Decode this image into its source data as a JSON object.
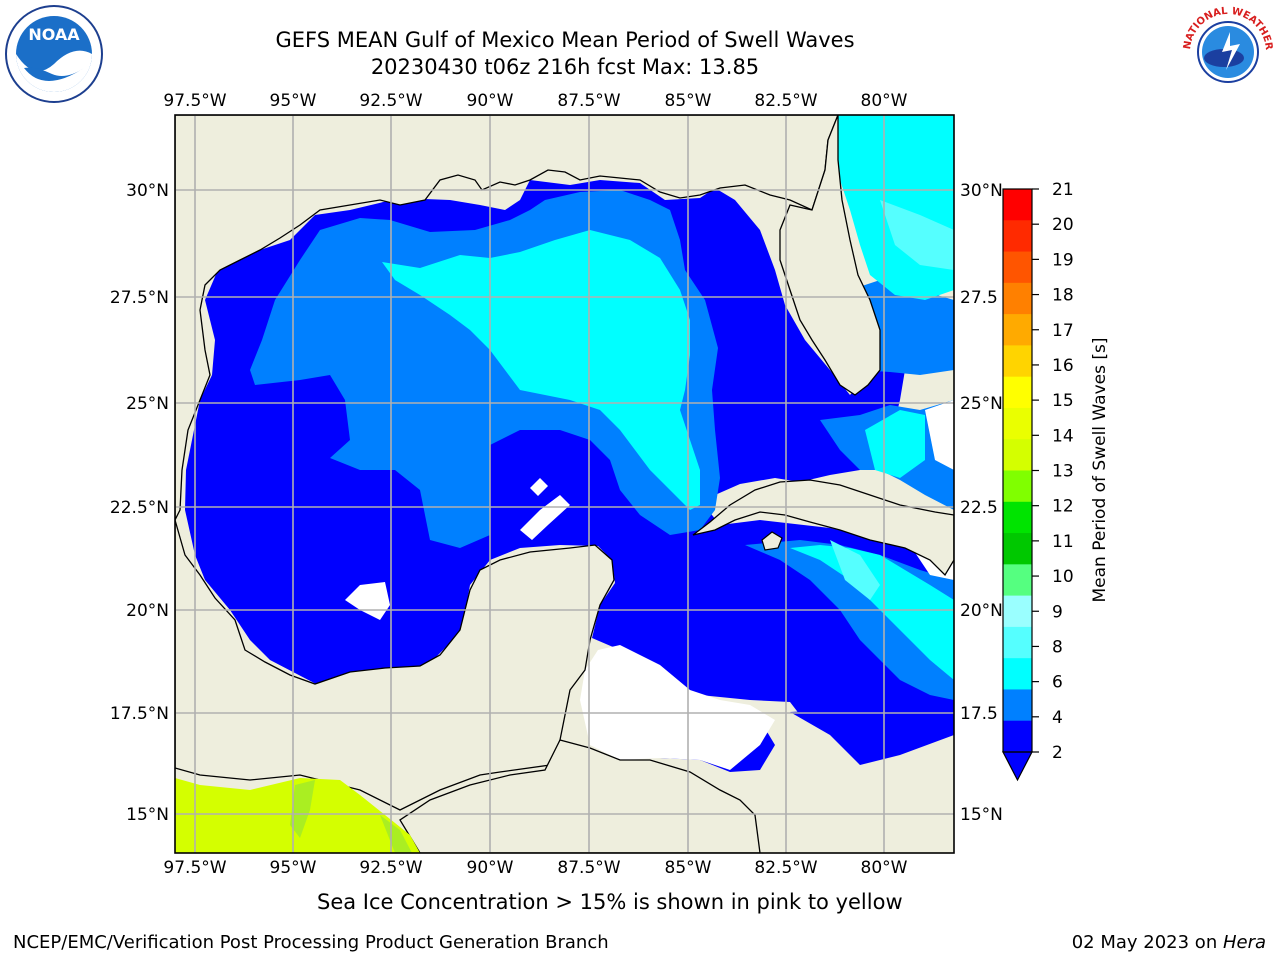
{
  "title": {
    "line1": "GEFS MEAN Gulf of Mexico Mean Period of Swell Waves",
    "line2": "20230430 t06z 216h fcst   Max: 13.85"
  },
  "logos": {
    "left": "NOAA",
    "right": "NATIONAL WEATHER SERVICE"
  },
  "axes": {
    "lon_labels": [
      "97.5°W",
      "95°W",
      "92.5°W",
      "90°W",
      "87.5°W",
      "85°W",
      "82.5°W",
      "80°W"
    ],
    "lat_labels_left": [
      "30°N",
      "27.5°N",
      "25°N",
      "22.5°N",
      "20°N",
      "17.5°N",
      "15°N"
    ],
    "lat_labels_right": [
      "30°N",
      "27.5",
      "25°N",
      "22.5",
      "20°N",
      "17.5",
      "15°N"
    ],
    "extent": {
      "lon": [
        -98,
        -78.2
      ],
      "lat": [
        14,
        31.6
      ]
    }
  },
  "colorbar": {
    "label": "Mean Period of Swell Waves [s]",
    "ticks": [
      "21",
      "20",
      "19",
      "18",
      "17",
      "16",
      "15",
      "14",
      "13",
      "12",
      "11",
      "10",
      "9",
      "8",
      "6",
      "4",
      "2"
    ],
    "colors": [
      "#ff0000",
      "#ff2a00",
      "#ff5500",
      "#ff8000",
      "#ffaa00",
      "#ffd400",
      "#ffff00",
      "#eaff00",
      "#d4ff00",
      "#80ff00",
      "#00e400",
      "#00c800",
      "#55ff80",
      "#9affff",
      "#55ffff",
      "#00ffff",
      "#0080ff",
      "#0000ff"
    ],
    "extend_color": "#0000ff"
  },
  "colors": {
    "land": "#eeeedd",
    "band_2_4": "#0000ff",
    "band_4_6": "#0080ff",
    "band_6_8": "#00ffff",
    "band_8_9": "#55ffff",
    "ice_yellow": "#d4ff00",
    "ice_green": "#aaee22",
    "grid": "#b0b0b0"
  },
  "note": "Sea Ice Concentration > 15% is shown in pink to yellow",
  "footer": {
    "left": "NCEP/EMC/Verification Post Processing Product Generation Branch",
    "date": "02 May 2023 on ",
    "host": "Hera"
  }
}
